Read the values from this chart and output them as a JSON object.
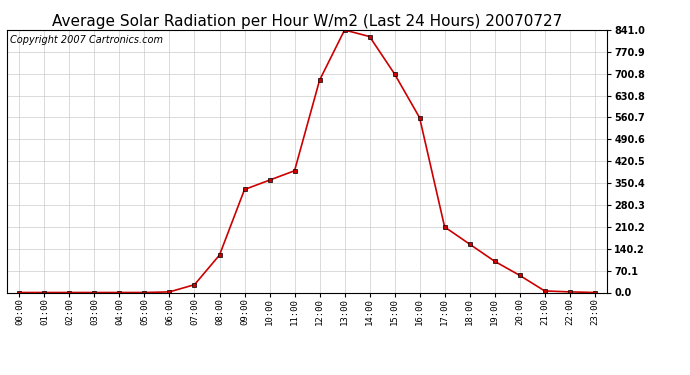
{
  "title": "Average Solar Radiation per Hour W/m2 (Last 24 Hours) 20070727",
  "copyright": "Copyright 2007 Cartronics.com",
  "hours": [
    "00:00",
    "01:00",
    "02:00",
    "03:00",
    "04:00",
    "05:00",
    "06:00",
    "07:00",
    "08:00",
    "09:00",
    "10:00",
    "11:00",
    "12:00",
    "13:00",
    "14:00",
    "15:00",
    "16:00",
    "17:00",
    "18:00",
    "19:00",
    "20:00",
    "21:00",
    "22:00",
    "23:00"
  ],
  "values": [
    0,
    0,
    0,
    0,
    0,
    0,
    2,
    25,
    120,
    330,
    360,
    390,
    680,
    841,
    820,
    700,
    560,
    210,
    155,
    100,
    55,
    5,
    2,
    0
  ],
  "line_color": "#cc0000",
  "marker": "s",
  "marker_color": "#000000",
  "bg_color": "#ffffff",
  "grid_color": "#cccccc",
  "ylim": [
    0,
    841.0
  ],
  "yticks": [
    0.0,
    70.1,
    140.2,
    210.2,
    280.3,
    350.4,
    420.5,
    490.6,
    560.7,
    630.8,
    700.8,
    770.9,
    841.0
  ],
  "title_fontsize": 11,
  "copyright_fontsize": 7
}
